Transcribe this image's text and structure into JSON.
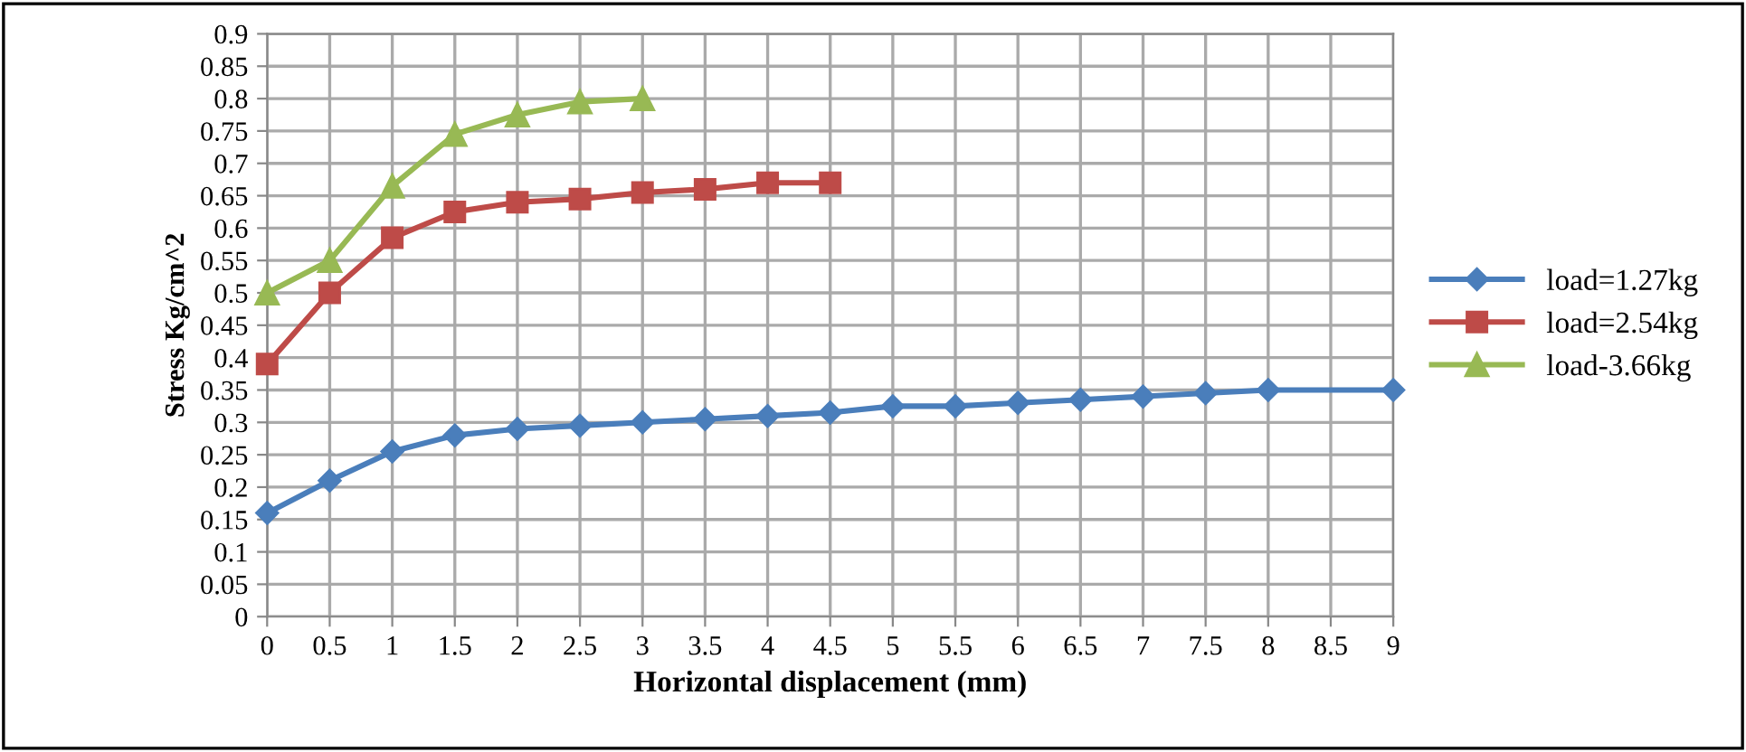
{
  "chart_data": {
    "type": "line",
    "xlabel": "Horizontal displacement (mm)",
    "ylabel": "Stress Kg/cm^2",
    "xlim": [
      0,
      9
    ],
    "xticks": [
      0,
      0.5,
      1,
      1.5,
      2,
      2.5,
      3,
      3.5,
      4,
      4.5,
      5,
      5.5,
      6,
      6.5,
      7,
      7.5,
      8,
      8.5,
      9
    ],
    "ylim": [
      0,
      0.9
    ],
    "yticks": [
      0,
      0.05,
      0.1,
      0.15,
      0.2,
      0.25,
      0.3,
      0.35,
      0.4,
      0.45,
      0.5,
      0.55,
      0.6,
      0.65,
      0.7,
      0.75,
      0.8,
      0.85,
      0.9
    ],
    "grid": true,
    "legend": "right",
    "series": [
      {
        "name": "load=1.27kg",
        "color": "#4a7ebb",
        "marker": "diamond",
        "x": [
          0,
          0.5,
          1,
          1.5,
          2,
          2.5,
          3,
          3.5,
          4,
          4.5,
          5,
          5.5,
          6,
          6.5,
          7,
          7.5,
          8,
          9
        ],
        "values": [
          0.16,
          0.21,
          0.255,
          0.28,
          0.29,
          0.295,
          0.3,
          0.305,
          0.31,
          0.315,
          0.325,
          0.325,
          0.33,
          0.335,
          0.34,
          0.345,
          0.35,
          0.35
        ]
      },
      {
        "name": "load=2.54kg",
        "color": "#be4b48",
        "marker": "square",
        "x": [
          0,
          0.5,
          1,
          1.5,
          2,
          2.5,
          3,
          3.5,
          4,
          4.5
        ],
        "values": [
          0.39,
          0.5,
          0.585,
          0.625,
          0.64,
          0.645,
          0.655,
          0.66,
          0.67,
          0.67
        ]
      },
      {
        "name": "load-3.66kg",
        "color": "#98b954",
        "marker": "triangle",
        "x": [
          0,
          0.5,
          1,
          1.5,
          2,
          2.5,
          3
        ],
        "values": [
          0.5,
          0.55,
          0.665,
          0.745,
          0.775,
          0.795,
          0.8
        ]
      }
    ]
  }
}
